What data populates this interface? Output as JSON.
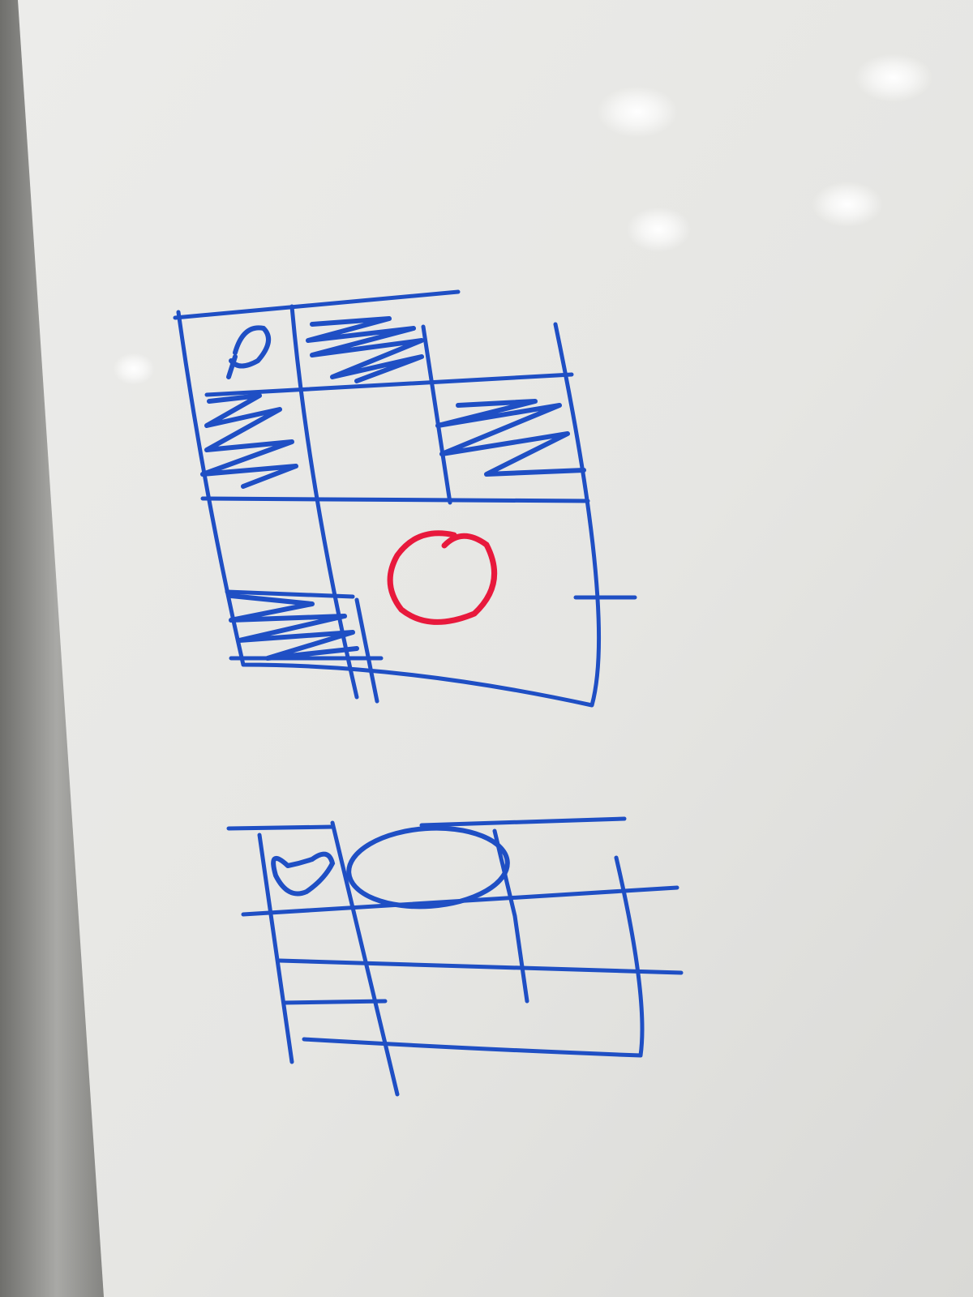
{
  "scene": {
    "board_color": "#e9e9e7",
    "frame_color": "#9b9b98",
    "marker_blue": "#1f4fc4",
    "marker_red": "#e8193c"
  },
  "sketch_top": {
    "marks_per_cell": [
      [
        "o",
        "hatch",
        "empty",
        "empty"
      ],
      [
        "hatch",
        "empty",
        "hatch",
        "empty"
      ],
      [
        "empty",
        "empty",
        "red-o",
        "empty"
      ],
      [
        "hatch",
        "empty",
        "empty",
        "empty"
      ]
    ]
  },
  "sketch_bottom": {
    "marks": [
      "heart",
      "ellipse"
    ]
  }
}
